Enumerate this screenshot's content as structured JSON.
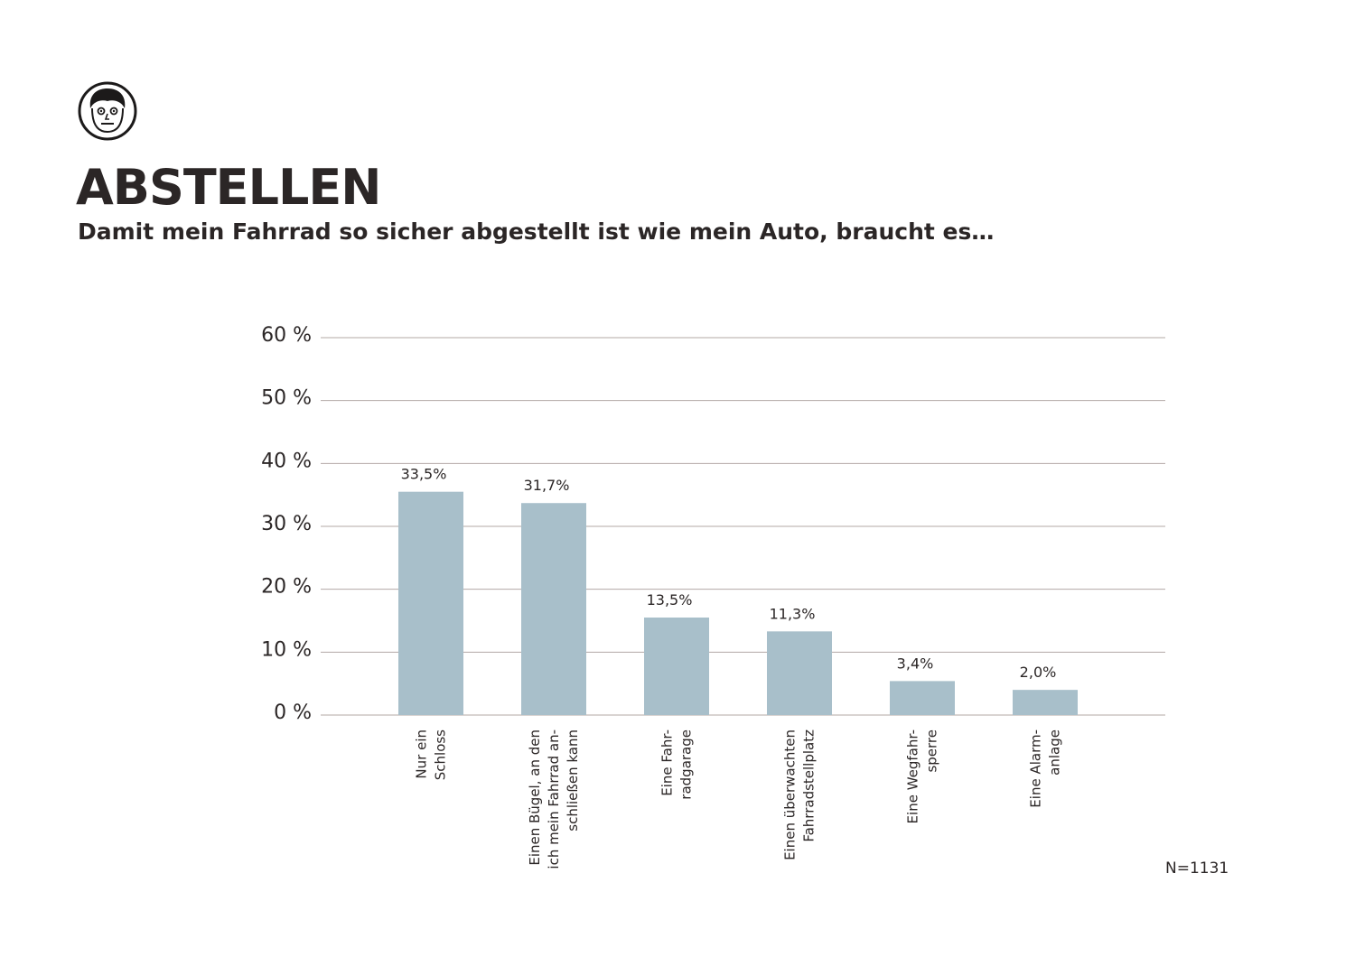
{
  "header": {
    "title": "ABSTELLEN",
    "subtitle": "Damit mein Fahrrad so sicher abgestellt ist wie mein Auto, braucht es…",
    "logo_icon": "cartoon-face-icon"
  },
  "footnote": "N=1131",
  "colors": {
    "bar": "#a8bfca",
    "grid": "#b3a8a6",
    "text": "#2b2626"
  },
  "chart_data": {
    "type": "bar",
    "categories": [
      [
        "Nur ein",
        "Schloss"
      ],
      [
        "Einen Bügel, an den",
        "ich mein Fahrrad an-",
        "schließen kann"
      ],
      [
        "Eine Fahr-",
        "radgarage"
      ],
      [
        "Einen überwachten",
        "Fahrradstellplatz"
      ],
      [
        "Eine Wegfahr-",
        "sperre"
      ],
      [
        "Eine Alarm-",
        "anlage"
      ]
    ],
    "values": [
      33.5,
      31.7,
      13.5,
      11.3,
      3.4,
      2.0
    ],
    "value_labels": [
      "33,5%",
      "31,7%",
      "13,5%",
      "11,3%",
      "3,4%",
      "2,0%"
    ],
    "y_ticks": [
      "0 %",
      "10 %",
      "20 %",
      "30 %",
      "40 %",
      "50 %",
      "60 %"
    ],
    "y_tick_values": [
      0,
      10,
      20,
      30,
      40,
      50,
      60
    ],
    "ylim": [
      0,
      60
    ],
    "grid": true,
    "legend": "none"
  }
}
